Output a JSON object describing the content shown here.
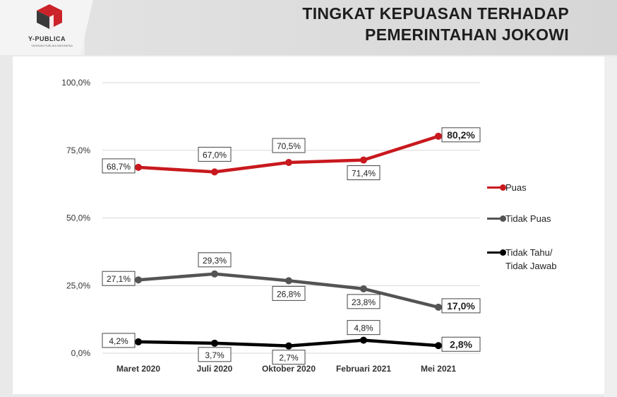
{
  "brand": {
    "name": "Y-PUBLICA",
    "tagline": "YAYASAN PUBLIKA INDONESIA",
    "colors": {
      "logo_red": "#cc2229",
      "logo_dark": "#333333"
    }
  },
  "header": {
    "title_line1": "TINGKAT KEPUASAN TERHADAP",
    "title_line2": "PEMERINTAHAN JOKOWI"
  },
  "chart_data": {
    "type": "line",
    "categories": [
      "Maret 2020",
      "Juli 2020",
      "Oktober 2020",
      "Februari 2021",
      "Mei 2021"
    ],
    "ylim": [
      0,
      100
    ],
    "yticks": [
      0,
      25,
      50,
      75,
      100
    ],
    "ytick_labels": [
      "0,0%",
      "25,0%",
      "50,0%",
      "75,0%",
      "100,0%"
    ],
    "grid": true,
    "legend_position": "right",
    "series": [
      {
        "name": "Puas",
        "color": "#c8191e",
        "values": [
          68.7,
          67.0,
          70.5,
          71.4,
          80.2
        ],
        "labels": [
          "68,7%",
          "67,0%",
          "70,5%",
          "71,4%",
          "80,2%"
        ]
      },
      {
        "name": "Tidak Puas",
        "color": "#545454",
        "values": [
          27.1,
          29.3,
          26.8,
          23.8,
          17.0
        ],
        "labels": [
          "27,1%",
          "29,3%",
          "26,8%",
          "23,8%",
          "17,0%"
        ]
      },
      {
        "name": "Tidak Tahu/\nTidak Jawab",
        "color": "#000000",
        "values": [
          4.2,
          3.7,
          2.7,
          4.8,
          2.8
        ],
        "labels": [
          "4,2%",
          "3,7%",
          "2,7%",
          "4,8%",
          "2,8%"
        ]
      }
    ]
  }
}
